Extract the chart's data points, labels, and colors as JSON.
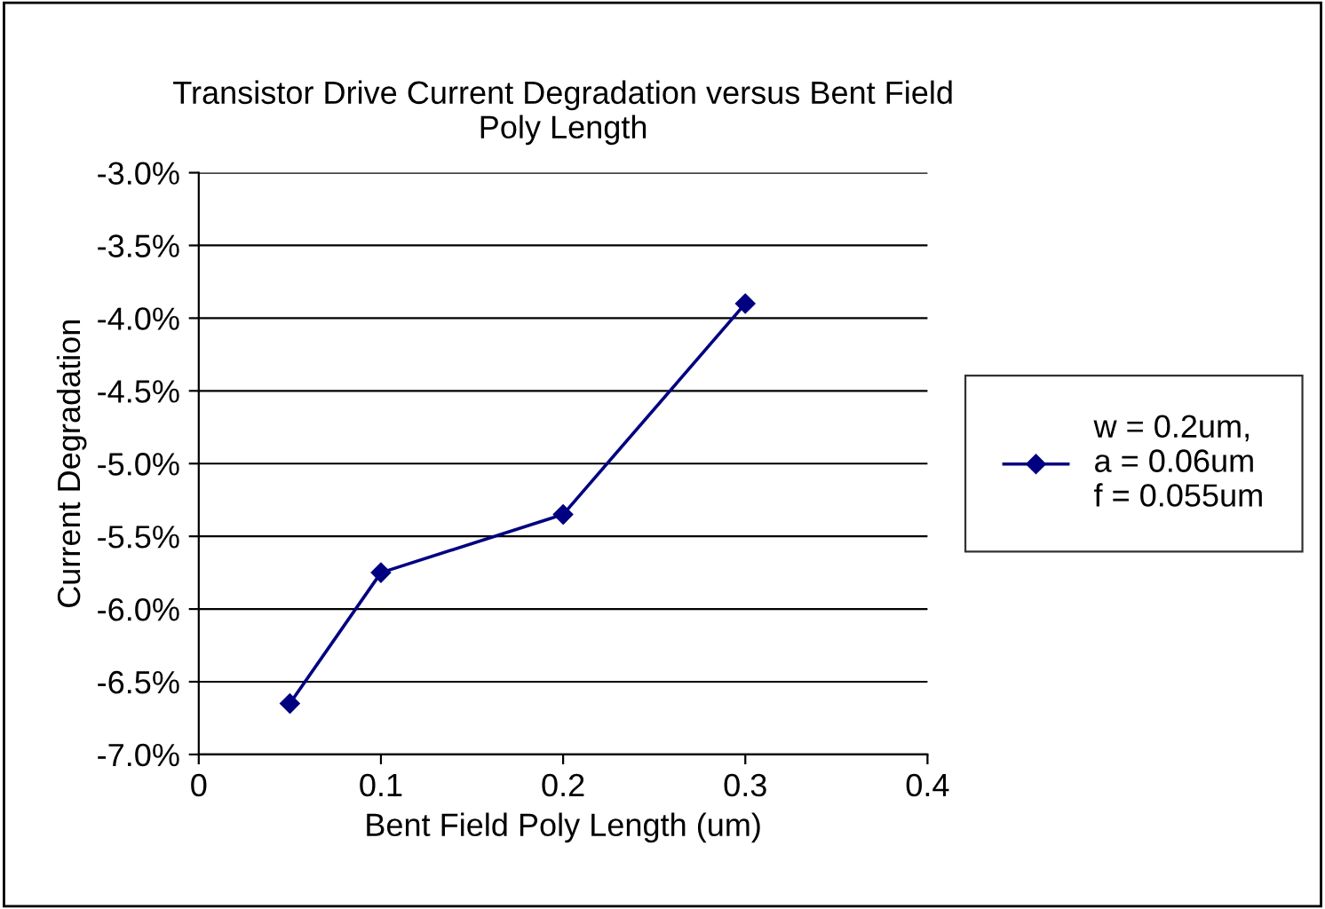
{
  "chart_data": {
    "type": "line",
    "title": "Transistor Drive Current Degradation versus Bent Field\nPoly Length",
    "xlabel": "Bent Field Poly Length (um)",
    "ylabel": "Current Degradation",
    "x": [
      0.05,
      0.1,
      0.2,
      0.3
    ],
    "series": [
      {
        "name": "w = 0.2um,\na = 0.06um\nf = 0.055um",
        "color": "#000080",
        "values": [
          -6.65,
          -5.75,
          -5.35,
          -3.9
        ]
      }
    ],
    "xlim": [
      0,
      0.4
    ],
    "xticks": [
      0,
      0.1,
      0.2,
      0.3,
      0.4
    ],
    "ylim": [
      -7,
      -3
    ],
    "yticks": [
      {
        "value": -7,
        "label": "-7.0%"
      },
      {
        "value": -6.5,
        "label": "-6.5%"
      },
      {
        "value": -6,
        "label": "-6.0%"
      },
      {
        "value": -5.5,
        "label": "-5.5%"
      },
      {
        "value": -5,
        "label": "-5.0%"
      },
      {
        "value": -4.5,
        "label": "-4.5%"
      },
      {
        "value": -4,
        "label": "-4.0%"
      },
      {
        "value": -3.5,
        "label": "-3.5%"
      },
      {
        "value": -3,
        "label": "-3.0%"
      }
    ],
    "grid": "y",
    "legend": "right",
    "marker": "diamond",
    "line_style": "solid"
  }
}
